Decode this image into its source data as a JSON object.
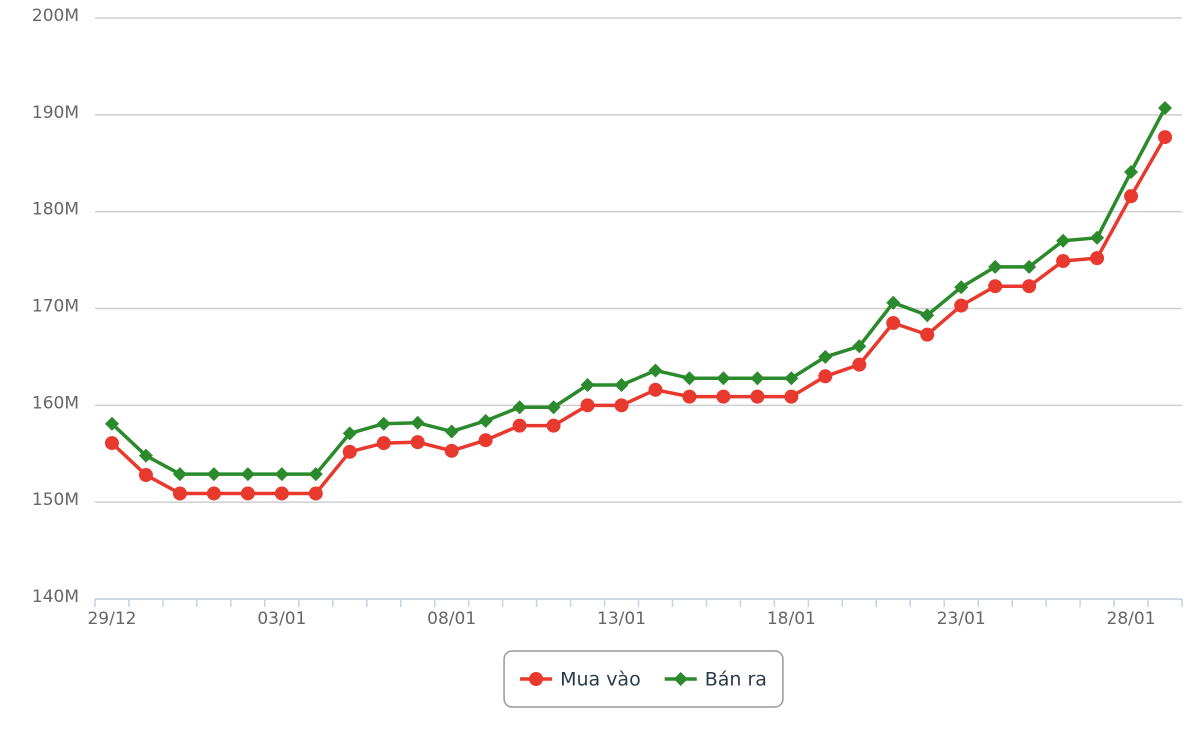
{
  "chart_data": {
    "type": "line",
    "categories": [
      "29/12",
      null,
      null,
      null,
      null,
      "03/01",
      null,
      null,
      null,
      null,
      "08/01",
      null,
      null,
      null,
      null,
      "13/01",
      null,
      null,
      null,
      null,
      "18/01",
      null,
      null,
      null,
      null,
      "23/01",
      null,
      null,
      null,
      null,
      "28/01",
      null
    ],
    "series": [
      {
        "name": "Mua vào",
        "color": "#e8392f",
        "marker": "circle",
        "values": [
          156100000,
          152800000,
          150900000,
          150900000,
          150900000,
          150900000,
          150900000,
          155200000,
          156100000,
          156200000,
          155300000,
          156400000,
          157900000,
          157900000,
          160000000,
          160000000,
          161600000,
          160900000,
          160900000,
          160900000,
          160900000,
          163000000,
          164200000,
          168500000,
          167300000,
          170300000,
          172300000,
          172300000,
          174900000,
          175200000,
          181600000,
          187700000
        ]
      },
      {
        "name": "Bán ra",
        "color": "#2b8a2b",
        "marker": "diamond",
        "values": [
          158100000,
          154800000,
          152900000,
          152900000,
          152900000,
          152900000,
          152900000,
          157100000,
          158100000,
          158200000,
          157300000,
          158400000,
          159800000,
          159800000,
          162100000,
          162100000,
          163600000,
          162800000,
          162800000,
          162800000,
          162800000,
          165000000,
          166100000,
          170600000,
          169300000,
          172200000,
          174300000,
          174300000,
          177000000,
          177300000,
          184100000,
          190700000
        ]
      }
    ],
    "ylim": [
      140000000,
      200000000
    ],
    "yticks": [
      {
        "value": 140000000,
        "label": "140M"
      },
      {
        "value": 150000000,
        "label": "150M"
      },
      {
        "value": 160000000,
        "label": "160M"
      },
      {
        "value": 170000000,
        "label": "170M"
      },
      {
        "value": 180000000,
        "label": "180M"
      },
      {
        "value": 190000000,
        "label": "190M"
      },
      {
        "value": 200000000,
        "label": "200M"
      }
    ],
    "grid": true,
    "legend": "bottom"
  }
}
